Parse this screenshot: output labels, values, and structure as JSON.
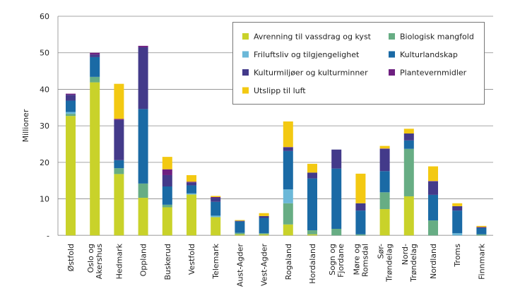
{
  "chart_data": {
    "type": "bar",
    "stacked": true,
    "title": "",
    "xlabel": "",
    "ylabel": "Millioner",
    "ylim": [
      0,
      60
    ],
    "yticks": [
      "-",
      "10",
      "20",
      "30",
      "40",
      "50",
      "60"
    ],
    "grid": true,
    "legend_position": "top-right",
    "categories": [
      [
        "Østfold"
      ],
      [
        "Oslo og",
        "Akershus"
      ],
      [
        "Hedmark"
      ],
      [
        "Oppland"
      ],
      [
        "Buskerud"
      ],
      [
        "Vestfold"
      ],
      [
        "Telemark"
      ],
      [
        "Aust-Agder"
      ],
      [
        "Vest-Agder"
      ],
      [
        "Rogaland"
      ],
      [
        "Hordaland"
      ],
      [
        "Sogn og",
        "Fjordane"
      ],
      [
        "Møre og",
        "Romsdal"
      ],
      [
        "Sør-",
        "Trøndelag"
      ],
      [
        "Nord-",
        "Trøndelag"
      ],
      [
        "Nordland"
      ],
      [
        "Troms"
      ],
      [
        "Finnmark"
      ]
    ],
    "series": [
      {
        "name": "Avrenning til vassdrag og kyst",
        "color": "#c9d22a",
        "values": [
          32.7,
          41.9,
          16.8,
          10.3,
          7.7,
          11.2,
          5.0,
          0.3,
          0.3,
          3.0,
          0.3,
          0,
          0,
          7.2,
          10.7,
          0,
          0,
          0
        ]
      },
      {
        "name": "Biologisk mangfold",
        "color": "#67ad84",
        "values": [
          0.6,
          1.5,
          1.6,
          3.9,
          0.7,
          0,
          0,
          0.4,
          0.3,
          5.8,
          1.1,
          1.8,
          0.3,
          4.6,
          13.0,
          4.1,
          0,
          0.3
        ]
      },
      {
        "name": "Friluftsliv og tilgjengelighet",
        "color": "#6bb8d8",
        "values": [
          0.5,
          0,
          0,
          0,
          0,
          0.3,
          0.4,
          0,
          0,
          3.8,
          0,
          0,
          0,
          0,
          0,
          0,
          0.6,
          0
        ]
      },
      {
        "name": "Kulturlandskap",
        "color": "#1a6aa5",
        "values": [
          3.1,
          5.4,
          2.2,
          20.4,
          5.0,
          2.2,
          3.8,
          3.1,
          4.2,
          10.5,
          14.2,
          16.5,
          6.5,
          5.8,
          2.3,
          7.0,
          6.2,
          1.7
        ]
      },
      {
        "name": "Kulturmiljøer og kulturminner",
        "color": "#433a8a",
        "values": [
          1.6,
          0.7,
          11.0,
          16.9,
          3.1,
          0.8,
          1.1,
          0.2,
          0.5,
          1.0,
          1.6,
          5.2,
          2.0,
          6.1,
          1.9,
          3.7,
          1.2,
          0.2
        ]
      },
      {
        "name": "Plantevernmidler",
        "color": "#6e2080",
        "values": [
          0.3,
          0.5,
          0.3,
          0.4,
          1.6,
          0.2,
          0.2,
          0,
          0,
          0.1,
          0,
          0,
          0,
          0.1,
          0,
          0.1,
          0,
          0.1
        ]
      },
      {
        "name": "Utslipp til luft",
        "color": "#f3c912",
        "values": [
          0,
          0,
          9.6,
          0,
          3.4,
          1.8,
          0.3,
          0.2,
          0.8,
          7.0,
          2.4,
          0,
          8.1,
          0.7,
          1.3,
          4.0,
          0.8,
          0.3
        ]
      }
    ],
    "legend_order": [
      0,
      1,
      2,
      3,
      4,
      5,
      6
    ]
  }
}
